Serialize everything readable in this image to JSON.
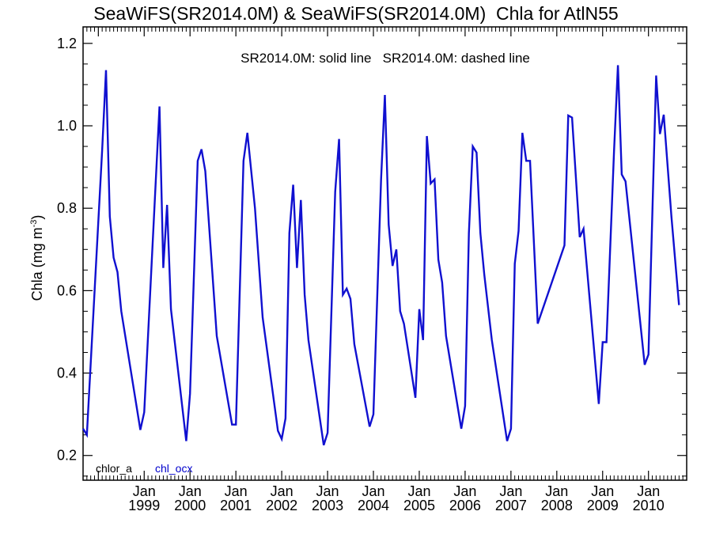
{
  "chart_data": {
    "type": "line",
    "title": "SeaWiFS(SR2014.0M) & SeaWiFS(SR2014.0M)  Chla for AtlN55",
    "annotation": "SR2014.0M: solid line   SR2014.0M: dashed line",
    "ylabel": "Chla (mg m",
    "ylabel_sup": "-3",
    "ylabel_close": ")",
    "ylim": [
      0.14,
      1.24
    ],
    "xlim_months": [
      "1997-09",
      "2010-11"
    ],
    "yticks": [
      0.2,
      0.4,
      0.6,
      0.8,
      1.0,
      1.2
    ],
    "ytick_labels": [
      "0.2",
      "0.4",
      "0.6",
      "0.8",
      "1.0",
      "1.2"
    ],
    "xtick_month_label": "Jan",
    "xtick_years": [
      "1999",
      "2000",
      "2001",
      "2002",
      "2003",
      "2004",
      "2005",
      "2006",
      "2007",
      "2008",
      "2009",
      "2010"
    ],
    "legend": [
      {
        "label": "chlor_a",
        "color": "#000000"
      },
      {
        "label": "chl_ocx",
        "color": "#0000cc"
      }
    ],
    "series": [
      {
        "name": "chl_ocx",
        "color": "#1010d0",
        "style": "solid",
        "points": [
          [
            "1997-09",
            0.265
          ],
          [
            "1997-10",
            0.25
          ],
          [
            "1998-02",
            0.94
          ],
          [
            "1998-03",
            1.135
          ],
          [
            "1998-04",
            0.78
          ],
          [
            "1998-05",
            0.68
          ],
          [
            "1998-06",
            0.645
          ],
          [
            "1998-07",
            0.55
          ],
          [
            "1998-12",
            0.262
          ],
          [
            "1999-01",
            0.305
          ],
          [
            "1999-05",
            1.047
          ],
          [
            "1999-06",
            0.655
          ],
          [
            "1999-07",
            0.808
          ],
          [
            "1999-08",
            0.555
          ],
          [
            "1999-12",
            0.235
          ],
          [
            "2000-01",
            0.35
          ],
          [
            "2000-03",
            0.915
          ],
          [
            "2000-04",
            0.943
          ],
          [
            "2000-05",
            0.89
          ],
          [
            "2000-08",
            0.49
          ],
          [
            "2000-12",
            0.275
          ],
          [
            "2001-01",
            0.275
          ],
          [
            "2001-03",
            0.915
          ],
          [
            "2001-04",
            0.983
          ],
          [
            "2001-06",
            0.8
          ],
          [
            "2001-08",
            0.535
          ],
          [
            "2001-12",
            0.26
          ],
          [
            "2002-01",
            0.24
          ],
          [
            "2002-02",
            0.29
          ],
          [
            "2002-03",
            0.74
          ],
          [
            "2002-04",
            0.857
          ],
          [
            "2002-05",
            0.655
          ],
          [
            "2002-06",
            0.82
          ],
          [
            "2002-07",
            0.59
          ],
          [
            "2002-08",
            0.48
          ],
          [
            "2002-12",
            0.225
          ],
          [
            "2003-01",
            0.255
          ],
          [
            "2003-03",
            0.84
          ],
          [
            "2003-04",
            0.968
          ],
          [
            "2003-05",
            0.59
          ],
          [
            "2003-06",
            0.605
          ],
          [
            "2003-07",
            0.58
          ],
          [
            "2003-08",
            0.47
          ],
          [
            "2003-12",
            0.27
          ],
          [
            "2004-01",
            0.3
          ],
          [
            "2004-03",
            0.87
          ],
          [
            "2004-04",
            1.075
          ],
          [
            "2004-05",
            0.76
          ],
          [
            "2004-06",
            0.66
          ],
          [
            "2004-07",
            0.7
          ],
          [
            "2004-08",
            0.55
          ],
          [
            "2004-09",
            0.52
          ],
          [
            "2004-12",
            0.34
          ],
          [
            "2005-01",
            0.555
          ],
          [
            "2005-02",
            0.48
          ],
          [
            "2005-03",
            0.975
          ],
          [
            "2005-04",
            0.86
          ],
          [
            "2005-05",
            0.87
          ],
          [
            "2005-06",
            0.675
          ],
          [
            "2005-07",
            0.62
          ],
          [
            "2005-08",
            0.49
          ],
          [
            "2005-12",
            0.265
          ],
          [
            "2006-01",
            0.32
          ],
          [
            "2006-02",
            0.74
          ],
          [
            "2006-03",
            0.95
          ],
          [
            "2006-04",
            0.935
          ],
          [
            "2006-05",
            0.74
          ],
          [
            "2006-06",
            0.64
          ],
          [
            "2006-08",
            0.48
          ],
          [
            "2006-12",
            0.235
          ],
          [
            "2007-01",
            0.265
          ],
          [
            "2007-02",
            0.665
          ],
          [
            "2007-03",
            0.745
          ],
          [
            "2007-04",
            0.983
          ],
          [
            "2007-05",
            0.915
          ],
          [
            "2007-06",
            0.915
          ],
          [
            "2007-07",
            0.72
          ],
          [
            "2007-08",
            0.52
          ],
          [
            "2008-03",
            0.71
          ],
          [
            "2008-04",
            1.025
          ],
          [
            "2008-05",
            1.02
          ],
          [
            "2008-07",
            0.73
          ],
          [
            "2008-08",
            0.75
          ],
          [
            "2008-12",
            0.325
          ],
          [
            "2009-01",
            0.475
          ],
          [
            "2009-02",
            0.475
          ],
          [
            "2009-04",
            0.94
          ],
          [
            "2009-05",
            1.147
          ],
          [
            "2009-06",
            0.882
          ],
          [
            "2009-07",
            0.865
          ],
          [
            "2009-12",
            0.42
          ],
          [
            "2010-01",
            0.445
          ],
          [
            "2010-03",
            1.122
          ],
          [
            "2010-04",
            0.98
          ],
          [
            "2010-05",
            1.027
          ],
          [
            "2010-07",
            0.78
          ],
          [
            "2010-09",
            0.565
          ]
        ]
      }
    ]
  }
}
